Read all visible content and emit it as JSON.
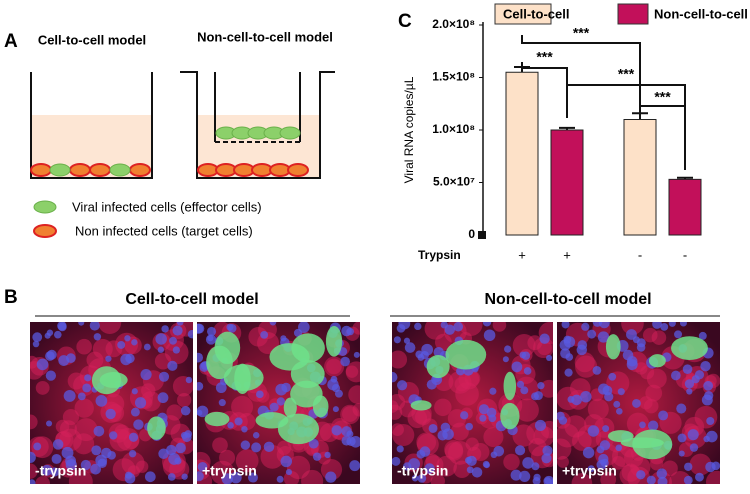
{
  "panels": {
    "a": "A",
    "b": "B",
    "c": "C"
  },
  "panel_a": {
    "titles": [
      "Cell-to-cell model",
      "Non-cell-to-cell model"
    ],
    "legend": [
      "Viral infected cells (effector cells)",
      "Non infected cells (target cells)"
    ]
  },
  "panel_b": {
    "groups": [
      {
        "title": "Cell-to-cell model",
        "images": [
          "-trypsin",
          "+trypsin"
        ]
      },
      {
        "title": "Non-cell-to-cell model",
        "images": [
          "-trypsin",
          "+trypsin"
        ]
      }
    ]
  },
  "chart_data": {
    "type": "bar",
    "y_label": "Viral RNA copies/µL",
    "x_label": "Trypsin",
    "categories": [
      "+",
      "+",
      "-",
      "-"
    ],
    "series": [
      {
        "name": "Cell-to-cell",
        "color": "#fde1c8",
        "values": [
          155000000,
          null,
          110000000,
          null
        ],
        "errors": [
          5000000,
          null,
          6000000,
          null
        ]
      },
      {
        "name": "Non-cell-to-cell",
        "color": "#c2105a",
        "values": [
          null,
          100000000,
          null,
          53000000
        ],
        "errors": [
          null,
          2000000,
          null,
          1500000
        ]
      }
    ],
    "ylim": [
      0,
      200000000
    ],
    "yticks": [
      0,
      {
        "value": 50000000,
        "label": "5.0×10⁷"
      },
      {
        "value": 100000000,
        "label": "1.0×10⁸"
      },
      {
        "value": 150000000,
        "label": "1.5×10⁸"
      },
      {
        "value": 200000000,
        "label": "2.0×10⁸"
      }
    ],
    "annotations": [
      "***",
      "***",
      "***",
      "***"
    ]
  }
}
